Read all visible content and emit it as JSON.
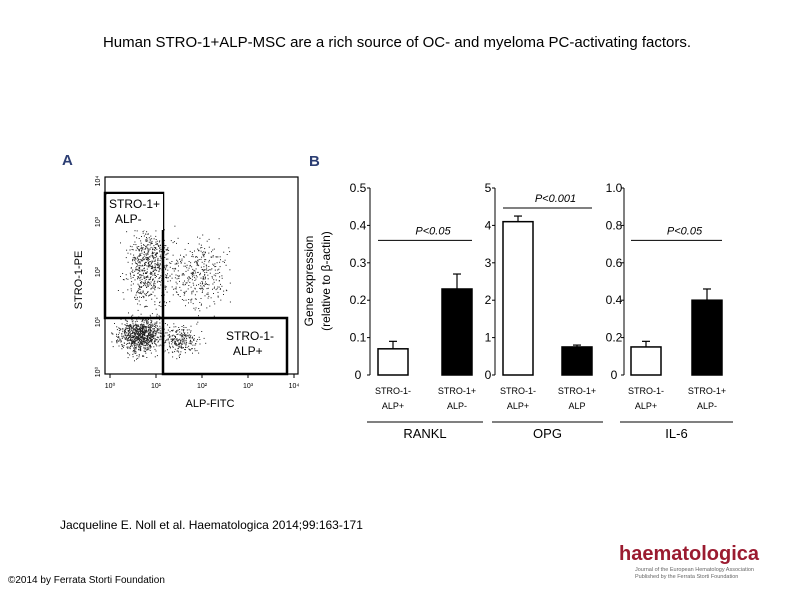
{
  "title": "Human STRO-1+ALP-MSC are a rich source of OC- and myeloma PC-activating factors.",
  "panel_a": {
    "letter": "A",
    "xlabel": "ALP-FITC",
    "ylabel": "STRO-1-PE",
    "ticks": [
      "10⁰",
      "10¹",
      "10²",
      "10³",
      "10⁴"
    ],
    "gate1_label": [
      "STRO-1+",
      "ALP-"
    ],
    "gate2_label": [
      "STRO-1-",
      "ALP+"
    ]
  },
  "panel_b": {
    "letter": "B",
    "ylabel_line1": "Gene expression",
    "ylabel_line2": "(relative to β-actin)"
  },
  "chart_data": [
    {
      "type": "bar",
      "gene": "RANKL",
      "categories": [
        "STRO-1- ALP+",
        "STRO-1+ ALP-"
      ],
      "values": [
        0.07,
        0.23
      ],
      "errors": [
        0.02,
        0.04
      ],
      "fill": [
        "#ffffff",
        "#000000"
      ],
      "ylim": [
        0,
        0.5
      ],
      "yticks": [
        "0",
        "0.1",
        "0.2",
        "0.3",
        "0.4",
        "0.5"
      ],
      "pvalue": "P<0.05"
    },
    {
      "type": "bar",
      "gene": "OPG",
      "categories": [
        "STRO-1- ALP+",
        "STRO-1+ ALP"
      ],
      "values": [
        4.1,
        0.75
      ],
      "errors": [
        0.15,
        0.05
      ],
      "fill": [
        "#ffffff",
        "#000000"
      ],
      "ylim": [
        0,
        5
      ],
      "yticks": [
        "0",
        "1",
        "2",
        "3",
        "4",
        "5"
      ],
      "pvalue": "P<0.001"
    },
    {
      "type": "bar",
      "gene": "IL-6",
      "categories": [
        "STRO-1- ALP+",
        "STRO-1+ ALP-"
      ],
      "values": [
        0.15,
        0.4
      ],
      "errors": [
        0.03,
        0.06
      ],
      "fill": [
        "#ffffff",
        "#000000"
      ],
      "ylim": [
        0,
        1.0
      ],
      "yticks": [
        "0",
        "0.2",
        "0.4",
        "0.6",
        "0.8",
        "1.0"
      ],
      "pvalue": "P<0.05"
    }
  ],
  "citation": "Jacqueline E. Noll et al. Haematologica 2014;99:163-171",
  "copyright": "©2014 by Ferrata Storti Foundation",
  "logo": {
    "word": "haematologica",
    "sub1": "Journal of the European Hematology Association",
    "sub2": "Published by the Ferrata Storti Foundation"
  }
}
